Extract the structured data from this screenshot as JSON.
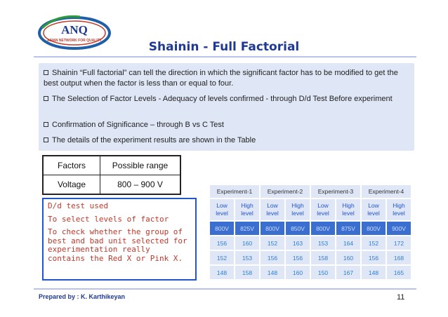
{
  "logo": {
    "text": "ANQ",
    "tagline": "ASIAN NETWORK FOR QUALITY",
    "colors": {
      "ring": "#1f5fa8",
      "text": "#c0392b",
      "accent": "#2e9b3a"
    }
  },
  "title": "Shainin - Full Factorial",
  "bullets": [
    "Shainin “Full factorial” can tell the direction in which the significant factor has to be modified to get the best output when the factor is less than or equal to four.",
    "The Selection of Factor Levels  - Adequacy of levels confirmed - through D/d Test Before experiment",
    "Confirmation of Significance – through B vs C Test",
    "The details of the experiment results are shown in the Table"
  ],
  "range_table": {
    "headers": [
      "Factors",
      "Possible range"
    ],
    "row": [
      "Voltage",
      "800 – 900 V"
    ]
  },
  "notes": [
    "D/d test used",
    "To select levels of factor",
    "To check whether the group of best and bad unit selected for experimentation really contains the Red X or Pink X."
  ],
  "experiments": {
    "names": [
      "Experiment-1",
      "Experiment-2",
      "Experiment-3",
      "Experiment-4"
    ],
    "levels": [
      "Low level",
      "High level",
      "Low level",
      "High level",
      "Low level",
      "High level",
      "Low level",
      "High level"
    ],
    "voltages": [
      "800V",
      "825V",
      "800V",
      "850V",
      "800V",
      "875V",
      "800V",
      "900V"
    ],
    "rows": [
      [
        "156",
        "160",
        "152",
        "163",
        "153",
        "164",
        "152",
        "172"
      ],
      [
        "152",
        "153",
        "156",
        "156",
        "158",
        "160",
        "156",
        "168"
      ],
      [
        "148",
        "158",
        "148",
        "160",
        "150",
        "167",
        "148",
        "165"
      ]
    ]
  },
  "footer": "Prepared by : K. Karthikeyan",
  "page_number": "11"
}
